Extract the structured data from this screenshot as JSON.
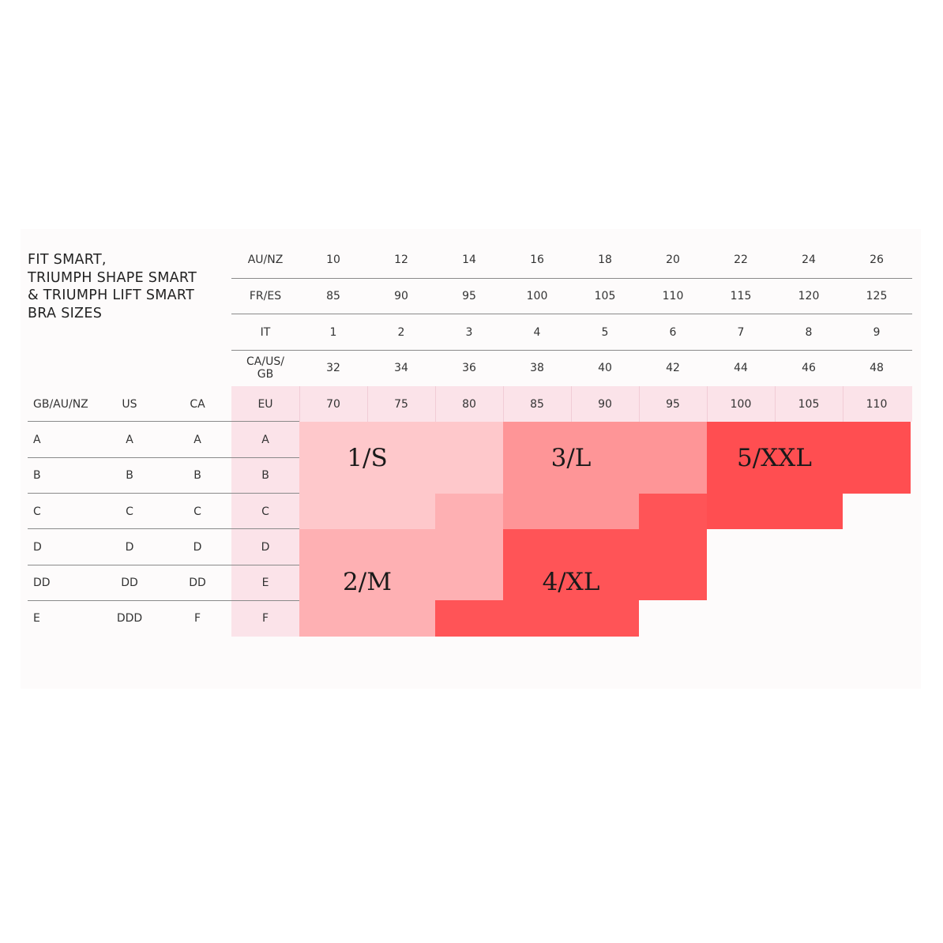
{
  "title_lines": [
    "FIT SMART,",
    "TRIUMPH SHAPE SMART",
    "& TRIUMPH LIFT SMART",
    "BRA SIZES"
  ],
  "band_rows": [
    {
      "label": "AU/NZ",
      "values": [
        "10",
        "12",
        "14",
        "16",
        "18",
        "20",
        "22",
        "24",
        "26"
      ]
    },
    {
      "label": "FR/ES",
      "values": [
        "85",
        "90",
        "95",
        "100",
        "105",
        "110",
        "115",
        "120",
        "125"
      ]
    },
    {
      "label": "IT",
      "values": [
        "1",
        "2",
        "3",
        "4",
        "5",
        "6",
        "7",
        "8",
        "9"
      ]
    },
    {
      "label": "CA/US/ GB",
      "values": [
        "32",
        "34",
        "36",
        "38",
        "40",
        "42",
        "44",
        "46",
        "48"
      ]
    },
    {
      "label": "EU",
      "values": [
        "70",
        "75",
        "80",
        "85",
        "90",
        "95",
        "100",
        "105",
        "110"
      ]
    }
  ],
  "cup_headers": [
    "GB/AU/NZ",
    "US",
    "CA"
  ],
  "cup_rows": [
    {
      "gb": "A",
      "us": "A",
      "ca": "A",
      "eu": "A"
    },
    {
      "gb": "B",
      "us": "B",
      "ca": "B",
      "eu": "B"
    },
    {
      "gb": "C",
      "us": "C",
      "ca": "C",
      "eu": "C"
    },
    {
      "gb": "D",
      "us": "D",
      "ca": "D",
      "eu": "D"
    },
    {
      "gb": "DD",
      "us": "DD",
      "ca": "DD",
      "eu": "E"
    },
    {
      "gb": "E",
      "us": "DDD",
      "ca": "F",
      "eu": "F"
    }
  ],
  "sizes": [
    {
      "label": "1/S",
      "color": "#fec8cb"
    },
    {
      "label": "2/M",
      "color": "#feb0b3"
    },
    {
      "label": "3/L",
      "color": "#fe9597"
    },
    {
      "label": "4/XL",
      "color": "#ff5457"
    },
    {
      "label": "5/XXL",
      "color": "#ff4e51"
    }
  ],
  "colors": {
    "eu_highlight": "#fbe3e9",
    "rule": "#8a8a8a"
  }
}
